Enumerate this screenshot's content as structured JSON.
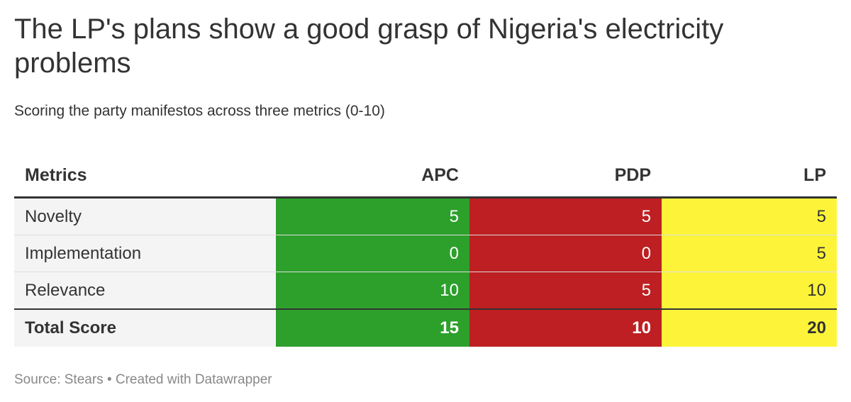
{
  "title": "The LP's plans show a good grasp of Nigeria's electricity problems",
  "subtitle": "Scoring the party manifestos across three metrics (0-10)",
  "footer": "Source: Stears • Created with Datawrapper",
  "chart_data": {
    "type": "table",
    "title": "The LP's plans show a good grasp of Nigeria's electricity problems",
    "subtitle": "Scoring the party manifestos across three metrics (0-10)",
    "columns": [
      "Metrics",
      "APC",
      "PDP",
      "LP"
    ],
    "column_colors": {
      "APC": {
        "bg": "#2da02c",
        "fg": "#ffffff"
      },
      "PDP": {
        "bg": "#be1f22",
        "fg": "#ffffff"
      },
      "LP": {
        "bg": "#fdf43a",
        "fg": "#333333"
      }
    },
    "rows": [
      {
        "metric": "Novelty",
        "APC": "5",
        "PDP": "5",
        "LP": "5"
      },
      {
        "metric": "Implementation",
        "APC": "0",
        "PDP": "0",
        "LP": "5"
      },
      {
        "metric": "Relevance",
        "APC": "10",
        "PDP": "5",
        "LP": "10"
      }
    ],
    "total": {
      "metric": "Total Score",
      "APC": "15",
      "PDP": "10",
      "LP": "20"
    }
  }
}
